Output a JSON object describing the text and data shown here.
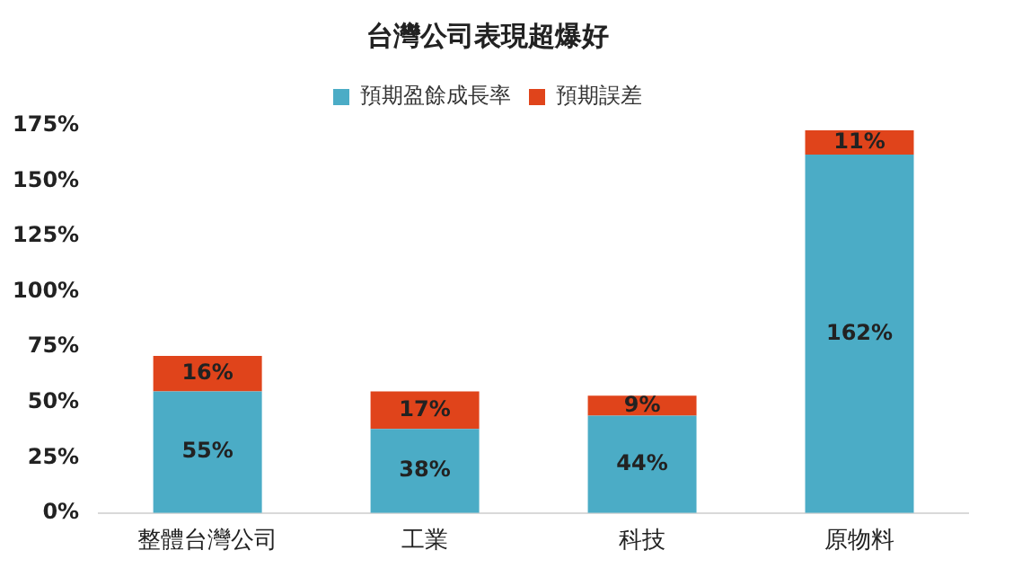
{
  "chart_data": {
    "type": "bar",
    "title": "台灣公司表現超爆好",
    "stacked": true,
    "legend": "top",
    "grid": false,
    "categories": [
      "整體台灣公司",
      "工業",
      "科技",
      "原物料"
    ],
    "series": [
      {
        "name": "預期盈餘成長率",
        "color": "#4bacc6",
        "values": [
          55,
          38,
          44,
          162
        ],
        "value_labels": [
          "55%",
          "38%",
          "44%",
          "162%"
        ]
      },
      {
        "name": "預期誤差",
        "color": "#e0441b",
        "values": [
          16,
          17,
          9,
          11
        ],
        "value_labels": [
          "16%",
          "17%",
          "9%",
          "11%"
        ]
      }
    ],
    "ylim": [
      0,
      175
    ],
    "yticks": [
      {
        "value": 0,
        "label": "0%"
      },
      {
        "value": 25,
        "label": "25%"
      },
      {
        "value": 50,
        "label": "50%"
      },
      {
        "value": 75,
        "label": "75%"
      },
      {
        "value": 100,
        "label": "100%"
      },
      {
        "value": 125,
        "label": "125%"
      },
      {
        "value": 150,
        "label": "150%"
      },
      {
        "value": 175,
        "label": "175%"
      }
    ]
  }
}
